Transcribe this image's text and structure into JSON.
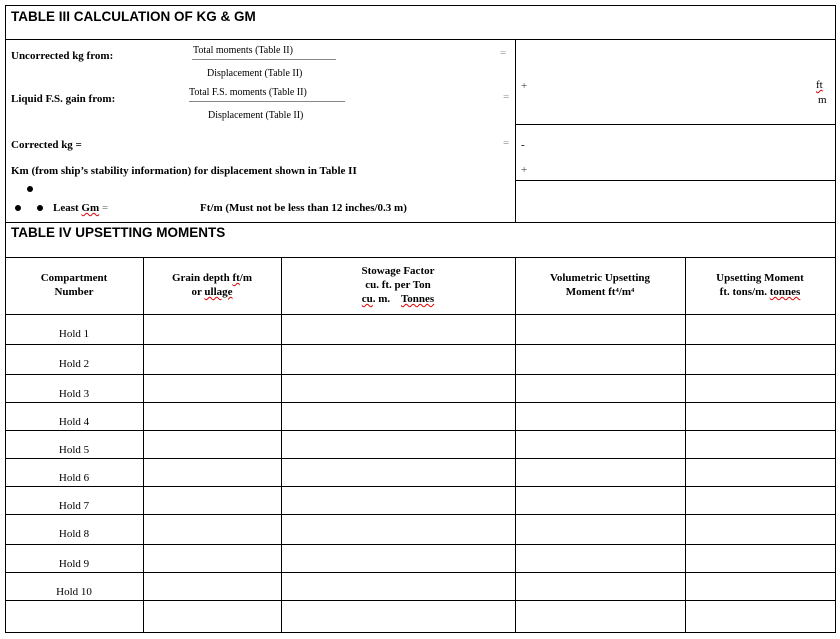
{
  "table3": {
    "title": "TABLE III   CALCULATION OF KG & GM",
    "uncorrected_label": "Uncorrected kg from:",
    "total_moments": "Total moments (Table  II)",
    "displacement1": "Displacement (Table  II)",
    "liquid_label": "Liquid F.S. gain from:",
    "total_fs": "Total F.S. moments (Table  II)",
    "displacement2": "Displacement (Table  II)",
    "equals": "=",
    "plus": "+",
    "minus": "-",
    "unit_ft": "ft",
    "unit_m": "m",
    "corrected_label": "Corrected kg =",
    "km_label": "Km (from ship’s stability information) for displacement shown in Table II",
    "least_gm_label": "Least ",
    "least_gm_word": "Gm",
    "least_gm_eq": " =",
    "least_gm_note": "Ft/m (Must not be less than 12 inches/0.3 m)"
  },
  "table4": {
    "title": "TABLE IV UPSETTING MOMENTS",
    "headers": {
      "c1a": "Compartment",
      "c1b": "Number",
      "c2a": "Grain depth ",
      "c2a_sq": "ft",
      "c2a2": "/m",
      "c2b_pre": "or ",
      "c2b_sq": "ullage",
      "c3a": "Stowage Factor",
      "c3b": "cu. ft. per Ton",
      "c3c_sq": "cu",
      "c3c": ". m.    ",
      "c3c_sq2": "Tonnes",
      "c4a": "Volumetric Upsetting",
      "c4b": "Moment ft⁴/m⁴",
      "c5a": "Upsetting Moment",
      "c5b": "ft. tons/m. ",
      "c5b_sq": "tonnes"
    },
    "rows": [
      "Hold 1",
      "Hold 2",
      "Hold 3",
      "Hold 4",
      "Hold 5",
      "Hold 6",
      "Hold 7",
      "Hold 8",
      "Hold 9",
      "Hold 10",
      ""
    ]
  }
}
